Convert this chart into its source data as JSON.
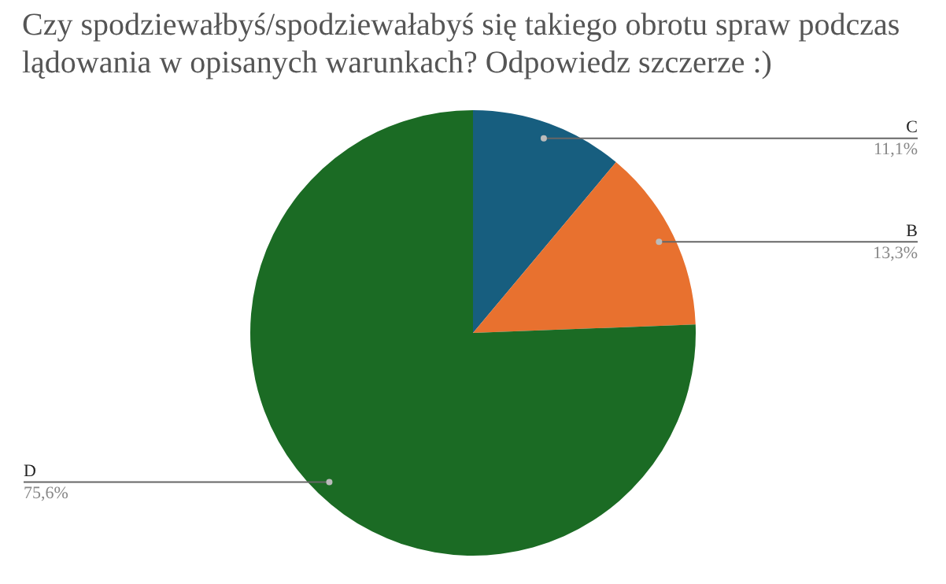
{
  "chart_data": {
    "type": "pie",
    "title": "Czy spodziewałbyś/spodziewałabyś się takiego obrotu spraw podczas lądowania w opisanych warunkach? Odpowiedz szczerze :)",
    "categories": [
      "C",
      "B",
      "D"
    ],
    "values": [
      11.1,
      13.3,
      75.6
    ],
    "colors": [
      "#175e7f",
      "#e8712f",
      "#1b6b24"
    ],
    "value_labels": [
      "11,1%",
      "13,3%",
      "75,6%"
    ],
    "legend": false
  }
}
